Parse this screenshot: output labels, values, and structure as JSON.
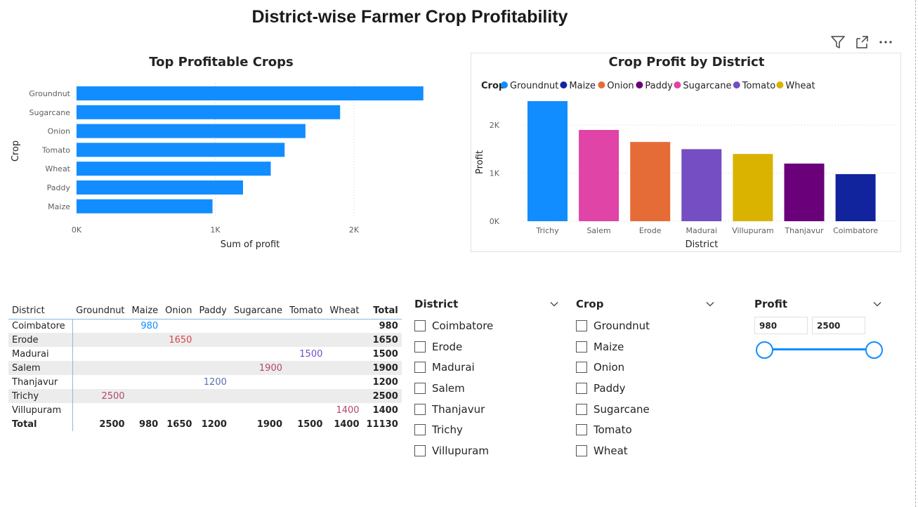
{
  "page": {
    "title": "District-wise Farmer Crop Profitability"
  },
  "toolbar": {
    "icons": [
      "filter-icon",
      "focus-mode-icon",
      "more-options-icon"
    ]
  },
  "colors": {
    "accent": "#118DFF",
    "grid": "#d0d0d0",
    "axis_text": "#605E5C",
    "crop_colors": {
      "Groundnut": "#118DFF",
      "Maize": "#12239E",
      "Onion": "#E66C37",
      "Paddy": "#6B007B",
      "Sugarcane": "#E044A7",
      "Tomato": "#744EC2",
      "Wheat": "#D9B300"
    }
  },
  "chart_data": [
    {
      "type": "bar",
      "orientation": "horizontal",
      "title": "Top Profitable Crops",
      "xlabel": "Sum of profit",
      "ylabel": "Crop",
      "categories": [
        "Groundnut",
        "Sugarcane",
        "Onion",
        "Tomato",
        "Wheat",
        "Paddy",
        "Maize"
      ],
      "values": [
        2500,
        1900,
        1650,
        1500,
        1400,
        1200,
        980
      ],
      "xticks": [
        0,
        1000,
        2000
      ],
      "xtick_labels": [
        "0K",
        "1K",
        "2K"
      ],
      "xlim": [
        0,
        2500
      ],
      "color": "#118DFF",
      "grid": true
    },
    {
      "type": "bar",
      "orientation": "vertical",
      "title": "Crop Profit by District",
      "xlabel": "District",
      "ylabel": "Profit",
      "legend_title": "Crop",
      "legend_position": "top-left",
      "legend": [
        "Groundnut",
        "Maize",
        "Onion",
        "Paddy",
        "Sugarcane",
        "Tomato",
        "Wheat"
      ],
      "categories": [
        "Trichy",
        "Salem",
        "Erode",
        "Madurai",
        "Villupuram",
        "Thanjavur",
        "Coimbatore"
      ],
      "values": [
        2500,
        1900,
        1650,
        1500,
        1400,
        1200,
        980
      ],
      "bar_crops": [
        "Groundnut",
        "Sugarcane",
        "Onion",
        "Tomato",
        "Wheat",
        "Paddy",
        "Maize"
      ],
      "yticks": [
        0,
        1000,
        2000
      ],
      "ytick_labels": [
        "0K",
        "1K",
        "2K"
      ],
      "ylim": [
        0,
        2500
      ],
      "grid": true
    }
  ],
  "matrix": {
    "headers": [
      "District",
      "Groundnut",
      "Maize",
      "Onion",
      "Paddy",
      "Sugarcane",
      "Tomato",
      "Wheat",
      "Total"
    ],
    "rows": [
      {
        "district": "Coimbatore",
        "cells": [
          "",
          "980",
          "",
          "",
          "",
          "",
          ""
        ],
        "total": "980"
      },
      {
        "district": "Erode",
        "cells": [
          "",
          "",
          "1650",
          "",
          "",
          "",
          ""
        ],
        "total": "1650"
      },
      {
        "district": "Madurai",
        "cells": [
          "",
          "",
          "",
          "",
          "",
          "1500",
          ""
        ],
        "total": "1500"
      },
      {
        "district": "Salem",
        "cells": [
          "",
          "",
          "",
          "",
          "1900",
          "",
          ""
        ],
        "total": "1900"
      },
      {
        "district": "Thanjavur",
        "cells": [
          "",
          "",
          "",
          "1200",
          "",
          "",
          ""
        ],
        "total": "1200"
      },
      {
        "district": "Trichy",
        "cells": [
          "2500",
          "",
          "",
          "",
          "",
          "",
          ""
        ],
        "total": "2500"
      },
      {
        "district": "Villupuram",
        "cells": [
          "",
          "",
          "",
          "",
          "",
          "",
          "1400"
        ],
        "total": "1400"
      }
    ],
    "value_colors": [
      "#118DFF",
      "#D64550",
      "#744EC2",
      "#B0476F",
      "#5B6FB5",
      "#B0476F",
      "#B0476F"
    ],
    "totals": {
      "label": "Total",
      "cells": [
        "2500",
        "980",
        "1650",
        "1200",
        "1900",
        "1500",
        "1400"
      ],
      "grand": "11130"
    }
  },
  "slicers": {
    "district": {
      "title": "District",
      "items": [
        "Coimbatore",
        "Erode",
        "Madurai",
        "Salem",
        "Thanjavur",
        "Trichy",
        "Villupuram"
      ]
    },
    "crop": {
      "title": "Crop",
      "items": [
        "Groundnut",
        "Maize",
        "Onion",
        "Paddy",
        "Sugarcane",
        "Tomato",
        "Wheat"
      ]
    },
    "profit": {
      "title": "Profit",
      "min_value": "980",
      "max_value": "2500"
    }
  }
}
